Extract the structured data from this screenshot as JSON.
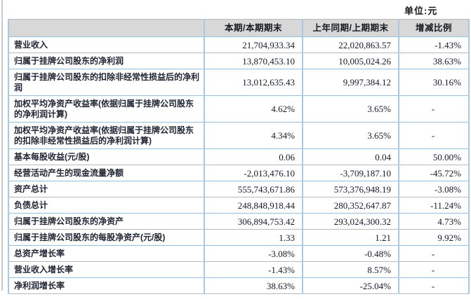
{
  "unit_label": "单位:元",
  "colors": {
    "table_border": "#a9c8e1",
    "header_background": "#d8d8d8",
    "text": "#1e2431"
  },
  "table": {
    "headers": [
      "",
      "本期/本期期末",
      "上年同期/上期期末",
      "增减比例"
    ],
    "rows": [
      {
        "label": "营业收入",
        "current": "21,704,933.34",
        "prior": "22,020,863.57",
        "change": "-1.43%"
      },
      {
        "label": "归属于挂牌公司股东的净利润",
        "current": "13,870,453.10",
        "prior": "10,005,024.26",
        "change": "38.63%"
      },
      {
        "label": "归属于挂牌公司股东的扣除非经常性损益后的净利润",
        "current": "13,012,635.43",
        "prior": "9,997,384.12",
        "change": "30.16%"
      },
      {
        "label": "加权平均净资产收益率(依据归属于挂牌公司股东的净利润计算)",
        "current": "4.62%",
        "prior": "3.65%",
        "change": "-"
      },
      {
        "label": "加权平均净资产收益率(依据归属于挂牌公司股东的扣除非经常性损益后的净利润计算)",
        "current": "4.34%",
        "prior": "3.65%",
        "change": "-"
      },
      {
        "label": "基本每股收益(元/股)",
        "current": "0.06",
        "prior": "0.04",
        "change": "50.00%"
      },
      {
        "label": "经营活动产生的现金流量净额",
        "current": "-2,013,476.10",
        "prior": "-3,709,187.10",
        "change": "-45.72%"
      },
      {
        "label": "资产总计",
        "current": "555,743,671.86",
        "prior": "573,376,948.19",
        "change": "-3.08%"
      },
      {
        "label": "负债总计",
        "current": "248,848,918.44",
        "prior": "280,352,647.87",
        "change": "-11.24%"
      },
      {
        "label": "归属于挂牌公司股东的净资产",
        "current": "306,894,753.42",
        "prior": "293,024,300.32",
        "change": "4.73%"
      },
      {
        "label": "归属于挂牌公司股东的每股净资产(元/股)",
        "current": "1.33",
        "prior": "1.21",
        "change": "9.92%"
      },
      {
        "label": "总资产增长率",
        "current": "-3.08%",
        "prior": "-0.48%",
        "change": "-"
      },
      {
        "label": "营业收入增长率",
        "current": "-1.43%",
        "prior": "8.57%",
        "change": "-"
      },
      {
        "label": "净利润增长率",
        "current": "38.63%",
        "prior": "-25.04%",
        "change": "-"
      }
    ]
  }
}
